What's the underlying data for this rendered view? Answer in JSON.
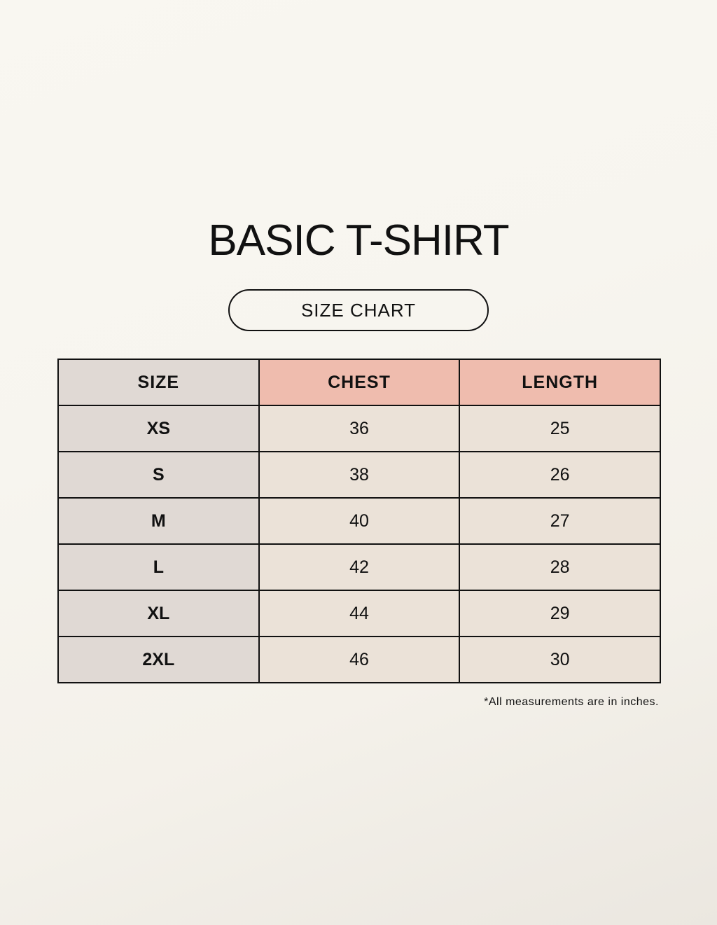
{
  "title": "BASIC T-SHIRT",
  "subtitle": "SIZE CHART",
  "table": {
    "headers": [
      "SIZE",
      "CHEST",
      "LENGTH"
    ],
    "rows": [
      [
        "XS",
        "36",
        "25"
      ],
      [
        "S",
        "38",
        "26"
      ],
      [
        "M",
        "40",
        "27"
      ],
      [
        "L",
        "42",
        "28"
      ],
      [
        "XL",
        "44",
        "29"
      ],
      [
        "2XL",
        "46",
        "30"
      ]
    ]
  },
  "note": "*All measurements are in inches.",
  "colors": {
    "size_column": "#e0d9d4",
    "header_highlight": "#efbcae",
    "cell": "#ebe2d8"
  }
}
